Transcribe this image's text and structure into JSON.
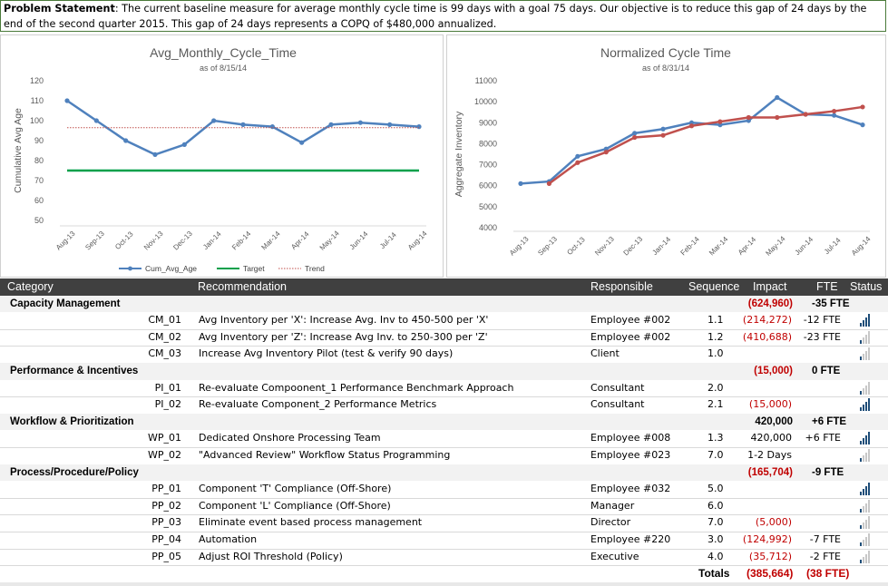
{
  "problem_statement": {
    "label": "Problem Statement",
    "text": ": The current baseline measure for average monthly cycle time is 99 days with a goal 75 days. Our objective is to reduce this gap of 24 days by the end of the second quarter 2015. This gap of 24 days represents a COPQ of $480,000 annualized."
  },
  "chart_data": [
    {
      "type": "line",
      "title": "Avg_Monthly_Cycle_Time",
      "subtitle": "as of 8/15/14",
      "ylabel": "Cumulative Avg Age",
      "xlabel": "",
      "ylim": [
        50,
        120
      ],
      "yticks": [
        "50",
        "60",
        "70",
        "80",
        "90",
        "100",
        "110",
        "120"
      ],
      "categories": [
        "Aug-13",
        "Sep-13",
        "Oct-13",
        "Nov-13",
        "Dec-13",
        "Jan-14",
        "Feb-14",
        "Mar-14",
        "Apr-14",
        "May-14",
        "Jun-14",
        "Jul-14",
        "Aug-14"
      ],
      "series": [
        {
          "name": "Cum_Avg_Age",
          "color": "#4f81bd",
          "values": [
            110,
            100,
            90,
            83,
            88,
            100,
            98,
            97,
            89,
            98,
            99,
            98,
            97
          ]
        },
        {
          "name": "Target",
          "color": "#00a04a",
          "values": [
            75,
            75,
            75,
            75,
            75,
            75,
            75,
            75,
            75,
            75,
            75,
            75,
            75
          ]
        },
        {
          "name": "Trend",
          "color": "#c0504d",
          "values": [
            96.5,
            96.5,
            96.5,
            96.5,
            96.5,
            96.5,
            96.5,
            96.5,
            96.5,
            96.5,
            96.5,
            96.5,
            96.5
          ]
        }
      ],
      "legend": "bottom"
    },
    {
      "type": "line",
      "title": "Normalized Cycle Time",
      "subtitle": "as of 8/31/14",
      "ylabel": "Aggregate Inventory",
      "xlabel": "",
      "ylim": [
        4000,
        11000
      ],
      "yticks": [
        "4000",
        "5000",
        "6000",
        "7000",
        "8000",
        "9000",
        "10000",
        "11000"
      ],
      "categories": [
        "Aug-13",
        "Sep-13",
        "Oct-13",
        "Nov-13",
        "Dec-13",
        "Jan-14",
        "Feb-14",
        "Mar-14",
        "Apr-14",
        "May-14",
        "Jun-14",
        "Jul-14",
        "Aug-14"
      ],
      "series": [
        {
          "color": "#4f81bd",
          "values": [
            6100,
            6200,
            7400,
            7750,
            8500,
            8700,
            9000,
            8900,
            9100,
            10200,
            9400,
            9350,
            8900
          ]
        },
        {
          "color": "#c0504d",
          "values": [
            null,
            6100,
            7100,
            7600,
            8300,
            8400,
            8850,
            9050,
            9250,
            9250,
            9400,
            9550,
            9750
          ]
        }
      ]
    }
  ],
  "table": {
    "headers": {
      "category": "Category",
      "recommendation": "Recommendation",
      "responsible": "Responsible",
      "sequence": "Sequence",
      "impact": "Impact",
      "fte": "FTE",
      "status": "Status"
    },
    "rows": [
      {
        "kind": "cat",
        "category": "Capacity Management",
        "impact": "(624,960)",
        "impact_red": true,
        "fte": "-35 FTE"
      },
      {
        "kind": "item",
        "id": "CM_01",
        "rec": "Avg Inventory per 'X': Increase Avg. Inv to 450-500 per 'X'",
        "resp": "Employee #002",
        "seq": "1.1",
        "impact": "(214,272)",
        "impact_red": true,
        "fte": "-12 FTE",
        "status": 4
      },
      {
        "kind": "item",
        "id": "CM_02",
        "rec": "Avg Inventory per 'Z': Increase Avg Inv. to 250-300 per 'Z'",
        "resp": "Employee #002",
        "seq": "1.2",
        "impact": "(410,688)",
        "impact_red": true,
        "fte": "-23 FTE",
        "status": 1
      },
      {
        "kind": "item",
        "id": "CM_03",
        "rec": "Increase Avg Inventory Pilot (test & verify 90 days)",
        "resp": "Client",
        "seq": "1.0",
        "impact": "",
        "fte": "",
        "status": 1
      },
      {
        "kind": "cat",
        "category": "Performance & Incentives",
        "impact": "(15,000)",
        "impact_red": true,
        "fte": "0 FTE"
      },
      {
        "kind": "item",
        "id": "PI_01",
        "rec": "Re-evaluate Compoonent_1 Performance Benchmark Approach",
        "resp": "Consultant",
        "seq": "2.0",
        "impact": "",
        "fte": "",
        "status": 1
      },
      {
        "kind": "item",
        "id": "PI_02",
        "rec": "Re-evaluate Component_2 Performance Metrics",
        "resp": "Consultant",
        "seq": "2.1",
        "impact": "(15,000)",
        "impact_red": true,
        "fte": "",
        "status": 4
      },
      {
        "kind": "cat",
        "category": "Workflow & Prioritization",
        "impact": "420,000",
        "impact_red": false,
        "fte": "+6 FTE"
      },
      {
        "kind": "item",
        "id": "WP_01",
        "rec": "Dedicated Onshore Processing Team",
        "resp": "Employee #008",
        "seq": "1.3",
        "impact": "420,000",
        "impact_red": false,
        "fte": "+6 FTE",
        "status": 4
      },
      {
        "kind": "item",
        "id": "WP_02",
        "rec": "\"Advanced Review\" Workflow Status Programming",
        "resp": "Employee #023",
        "seq": "7.0",
        "impact": "1-2 Days",
        "impact_red": false,
        "fte": "",
        "status": 1
      },
      {
        "kind": "cat",
        "category": "Process/Procedure/Policy",
        "impact": "(165,704)",
        "impact_red": true,
        "fte": "-9 FTE"
      },
      {
        "kind": "item",
        "id": "PP_01",
        "rec": "Component 'T' Compliance (Off-Shore)",
        "resp": "Employee #032",
        "seq": "5.0",
        "impact": "",
        "fte": "",
        "status": 4
      },
      {
        "kind": "item",
        "id": "PP_02",
        "rec": "Component 'L' Compliance (Off-Shore)",
        "resp": "Manager",
        "seq": "6.0",
        "impact": "",
        "fte": "",
        "status": 1
      },
      {
        "kind": "item",
        "id": "PP_03",
        "rec": "Eliminate event based process management",
        "resp": "Director",
        "seq": "7.0",
        "impact": "(5,000)",
        "impact_red": true,
        "fte": "",
        "status": 1
      },
      {
        "kind": "item",
        "id": "PP_04",
        "rec": "Automation",
        "resp": "Employee #220",
        "seq": "3.0",
        "impact": "(124,992)",
        "impact_red": true,
        "fte": "-7 FTE",
        "status": 1
      },
      {
        "kind": "item",
        "id": "PP_05",
        "rec": "Adjust ROI Threshold (Policy)",
        "resp": "Executive",
        "seq": "4.0",
        "impact": "(35,712)",
        "impact_red": true,
        "fte": "-2 FTE",
        "status": 1
      }
    ],
    "totals": {
      "label": "Totals",
      "impact": "(385,664)",
      "fte": "(38 FTE)"
    }
  }
}
